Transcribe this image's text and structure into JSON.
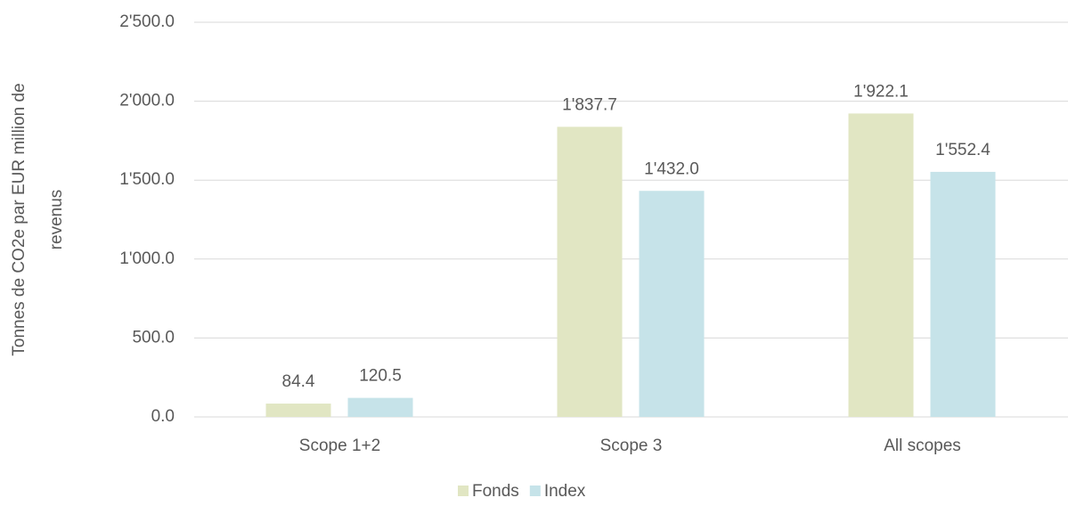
{
  "chart_data": {
    "type": "bar",
    "ylabel": [
      "Tonnes de CO2e par EUR million de",
      "revenus"
    ],
    "categories": [
      "Scope 1+2",
      "Scope 3",
      "All scopes"
    ],
    "series": [
      {
        "name": "Fonds",
        "color": "#e1e6c3",
        "values": [
          84.4,
          1837.7,
          1922.1
        ],
        "value_labels": [
          "84.4",
          "1'837.7",
          "1'922.1"
        ]
      },
      {
        "name": "Index",
        "color": "#c6e3e9",
        "values": [
          120.5,
          1432.0,
          1552.4
        ],
        "value_labels": [
          "120.5",
          "1'432.0",
          "1'552.4"
        ]
      }
    ],
    "ylim": [
      0,
      2500
    ],
    "yticks": [
      {
        "value": 0,
        "label": "0.0"
      },
      {
        "value": 500,
        "label": "500.0"
      },
      {
        "value": 1000,
        "label": "1'000.0"
      },
      {
        "value": 1500,
        "label": "1'500.0"
      },
      {
        "value": 2000,
        "label": "2'000.0"
      },
      {
        "value": 2500,
        "label": "2'500.0"
      }
    ],
    "grid": true,
    "legend": "bottom"
  }
}
